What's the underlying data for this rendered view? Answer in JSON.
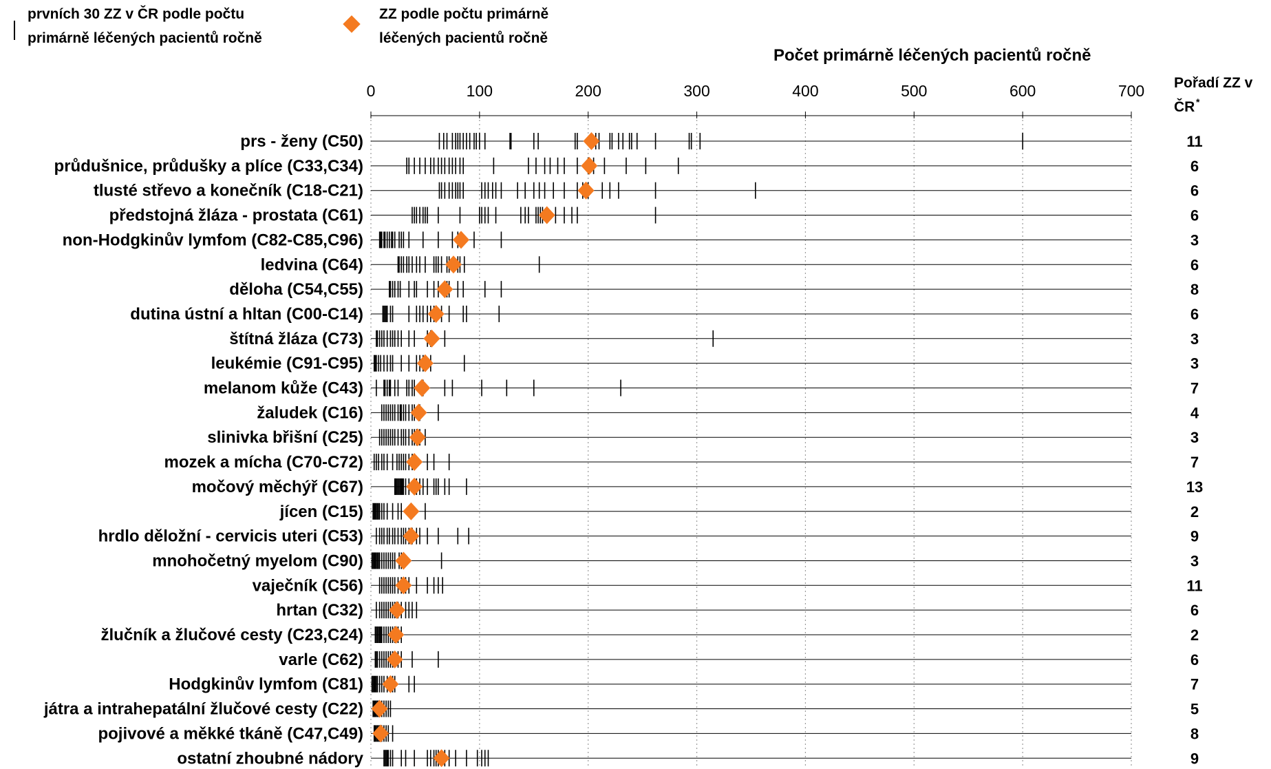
{
  "legend": {
    "tick_line1": "prvních 30 ZZ v ČR podle počtu",
    "tick_line2": "primárně léčených pacientů ročně",
    "diamond_line1": "ZZ podle počtu primárně",
    "diamond_line2": "léčených pacientů ročně"
  },
  "rank_header": {
    "line1": "Pořadí ZZ v",
    "line2": "ČR",
    "marker": "*"
  },
  "colors": {
    "diamond": "#f47a20",
    "tick": "#000000",
    "grid": "#9a9a9a"
  },
  "chart_data": {
    "type": "scatter",
    "xlabel": "Počet primárně léčených pacientů ročně",
    "xlim": [
      0,
      700
    ],
    "xticks": [
      0,
      100,
      200,
      300,
      400,
      500,
      600,
      700
    ],
    "grid": "vertical dotted",
    "rows": [
      {
        "label": "prs - ženy (C50)",
        "diamond": 203,
        "rank": "11",
        "ticks": [
          63,
          67,
          70,
          75,
          78,
          80,
          82,
          85,
          88,
          91,
          95,
          97,
          100,
          105,
          128,
          129,
          150,
          154,
          188,
          190,
          207,
          210,
          220,
          222,
          228,
          232,
          238,
          240,
          245,
          262,
          293,
          295,
          303,
          600
        ]
      },
      {
        "label": "průdušnice, průdušky a plíce (C33,C34)",
        "diamond": 201,
        "rank": "6",
        "ticks": [
          33,
          35,
          40,
          45,
          50,
          55,
          58,
          62,
          65,
          68,
          72,
          75,
          78,
          82,
          85,
          113,
          145,
          152,
          160,
          165,
          172,
          178,
          190,
          200,
          205,
          215,
          235,
          253,
          283
        ]
      },
      {
        "label": "tlusté střevo a konečník (C18-C21)",
        "diamond": 198,
        "rank": "6",
        "ticks": [
          63,
          65,
          68,
          72,
          75,
          78,
          80,
          82,
          85,
          102,
          105,
          108,
          112,
          115,
          120,
          135,
          142,
          150,
          155,
          160,
          168,
          178,
          190,
          195,
          200,
          213,
          220,
          228,
          262,
          354
        ]
      },
      {
        "label": "předstojná žláza - prostata (C61)",
        "diamond": 162,
        "rank": "6",
        "ticks": [
          38,
          40,
          42,
          45,
          48,
          50,
          52,
          62,
          82,
          100,
          102,
          105,
          108,
          115,
          138,
          142,
          145,
          152,
          154,
          156,
          158,
          170,
          178,
          185,
          190,
          262
        ]
      },
      {
        "label": "non-Hodgkinův lymfom (C82-C85,C96)",
        "diamond": 83,
        "rank": "3",
        "ticks": [
          8,
          9,
          10,
          12,
          13,
          15,
          17,
          19,
          20,
          22,
          26,
          28,
          30,
          35,
          48,
          62,
          75,
          80,
          95,
          120
        ]
      },
      {
        "label": "ledvina (C64)",
        "diamond": 76,
        "rank": "6",
        "ticks": [
          25,
          26,
          28,
          30,
          33,
          35,
          38,
          42,
          45,
          50,
          58,
          60,
          62,
          65,
          70,
          72,
          80,
          82,
          86,
          155
        ]
      },
      {
        "label": "děloha (C54,C55)",
        "diamond": 68,
        "rank": "8",
        "ticks": [
          17,
          18,
          20,
          22,
          25,
          27,
          35,
          40,
          42,
          52,
          58,
          62,
          70,
          72,
          80,
          85,
          105,
          120
        ]
      },
      {
        "label": "dutina ústní a hltan (C00-C14)",
        "diamond": 60,
        "rank": "6",
        "ticks": [
          11,
          12,
          13,
          14,
          15,
          18,
          20,
          35,
          42,
          45,
          48,
          52,
          55,
          58,
          65,
          72,
          85,
          88,
          118
        ]
      },
      {
        "label": "štítná žláza (C73)",
        "diamond": 56,
        "rank": "3",
        "ticks": [
          5,
          6,
          8,
          10,
          12,
          15,
          18,
          20,
          22,
          25,
          28,
          35,
          40,
          52,
          55,
          68,
          315
        ]
      },
      {
        "label": "leukémie (C91-C95)",
        "diamond": 50,
        "rank": "3",
        "ticks": [
          3,
          4,
          5,
          7,
          9,
          12,
          15,
          18,
          20,
          28,
          35,
          42,
          45,
          48,
          55,
          86
        ]
      },
      {
        "label": "melanom kůže (C43)",
        "diamond": 47,
        "rank": "7",
        "ticks": [
          5,
          12,
          13,
          15,
          17,
          18,
          22,
          25,
          33,
          35,
          38,
          40,
          48,
          68,
          75,
          102,
          125,
          150,
          230
        ]
      },
      {
        "label": "žaludek (C16)",
        "diamond": 44,
        "rank": "4",
        "ticks": [
          10,
          12,
          14,
          16,
          18,
          20,
          22,
          25,
          27,
          28,
          30,
          32,
          35,
          38,
          40,
          45,
          62
        ]
      },
      {
        "label": "slinivka břišní (C25)",
        "diamond": 43,
        "rank": "3",
        "ticks": [
          8,
          10,
          12,
          14,
          16,
          18,
          20,
          22,
          25,
          28,
          30,
          32,
          35,
          38,
          40,
          42,
          45,
          50
        ]
      },
      {
        "label": "mozek a mícha (C70-C72)",
        "diamond": 40,
        "rank": "7",
        "ticks": [
          3,
          5,
          7,
          10,
          12,
          15,
          20,
          24,
          26,
          28,
          30,
          32,
          35,
          38,
          52,
          58,
          72
        ]
      },
      {
        "label": "močový měchýř (C67)",
        "diamond": 40,
        "rank": "13",
        "ticks": [
          22,
          23,
          24,
          25,
          26,
          27,
          28,
          29,
          30,
          32,
          35,
          40,
          42,
          45,
          48,
          52,
          58,
          60,
          62,
          68,
          72,
          88
        ]
      },
      {
        "label": "jícen (C15)",
        "diamond": 37,
        "rank": "2",
        "ticks": [
          2,
          3,
          4,
          5,
          6,
          7,
          8,
          10,
          12,
          15,
          20,
          25,
          28,
          50
        ]
      },
      {
        "label": "hrdlo děložní - cervicis uteri (C53)",
        "diamond": 37,
        "rank": "9",
        "ticks": [
          5,
          8,
          10,
          12,
          15,
          17,
          20,
          22,
          25,
          28,
          30,
          32,
          35,
          38,
          42,
          45,
          52,
          62,
          80,
          90
        ]
      },
      {
        "label": "mnohočetný myelom (C90)",
        "diamond": 30,
        "rank": "3",
        "ticks": [
          1,
          2,
          3,
          4,
          5,
          6,
          7,
          8,
          10,
          12,
          14,
          16,
          18,
          20,
          22,
          26,
          28,
          30,
          65
        ]
      },
      {
        "label": "vaječník (C56)",
        "diamond": 30,
        "rank": "11",
        "ticks": [
          8,
          10,
          12,
          14,
          16,
          18,
          20,
          22,
          25,
          28,
          30,
          32,
          35,
          42,
          52,
          58,
          62,
          66
        ]
      },
      {
        "label": "hrtan (C32)",
        "diamond": 24,
        "rank": "6",
        "ticks": [
          5,
          8,
          10,
          12,
          14,
          16,
          18,
          20,
          22,
          25,
          28,
          32,
          35,
          38,
          42
        ]
      },
      {
        "label": "žlučník a žlučové cesty (C23,C24)",
        "diamond": 23,
        "rank": "2",
        "ticks": [
          4,
          5,
          6,
          7,
          8,
          9,
          10,
          12,
          14,
          16,
          18,
          20,
          22,
          25,
          28
        ]
      },
      {
        "label": "varle (C62)",
        "diamond": 22,
        "rank": "6",
        "ticks": [
          4,
          5,
          6,
          8,
          10,
          12,
          14,
          16,
          18,
          20,
          22,
          25,
          28,
          38,
          62
        ]
      },
      {
        "label": "Hodgkinův lymfom (C81)",
        "diamond": 18,
        "rank": "7",
        "ticks": [
          1,
          2,
          3,
          4,
          5,
          6,
          8,
          10,
          12,
          15,
          18,
          20,
          22,
          35,
          40
        ]
      },
      {
        "label": "játra a intrahepatální žlučové cesty (C22)",
        "diamond": 8,
        "rank": "5",
        "ticks": [
          2,
          3,
          4,
          5,
          6,
          7,
          8,
          10,
          12,
          14,
          16,
          18
        ]
      },
      {
        "label": "pojivové a měkké tkáně (C47,C49)",
        "diamond": 9,
        "rank": "8",
        "ticks": [
          3,
          4,
          5,
          6,
          7,
          8,
          9,
          10,
          12,
          14,
          16,
          20
        ]
      },
      {
        "label": "ostatní zhoubné nádory",
        "diamond": 65,
        "rank": "9",
        "ticks": [
          12,
          13,
          14,
          15,
          16,
          18,
          20,
          28,
          32,
          40,
          52,
          55,
          58,
          60,
          62,
          65,
          68,
          72,
          78,
          88,
          98,
          102,
          105,
          108
        ]
      }
    ]
  }
}
